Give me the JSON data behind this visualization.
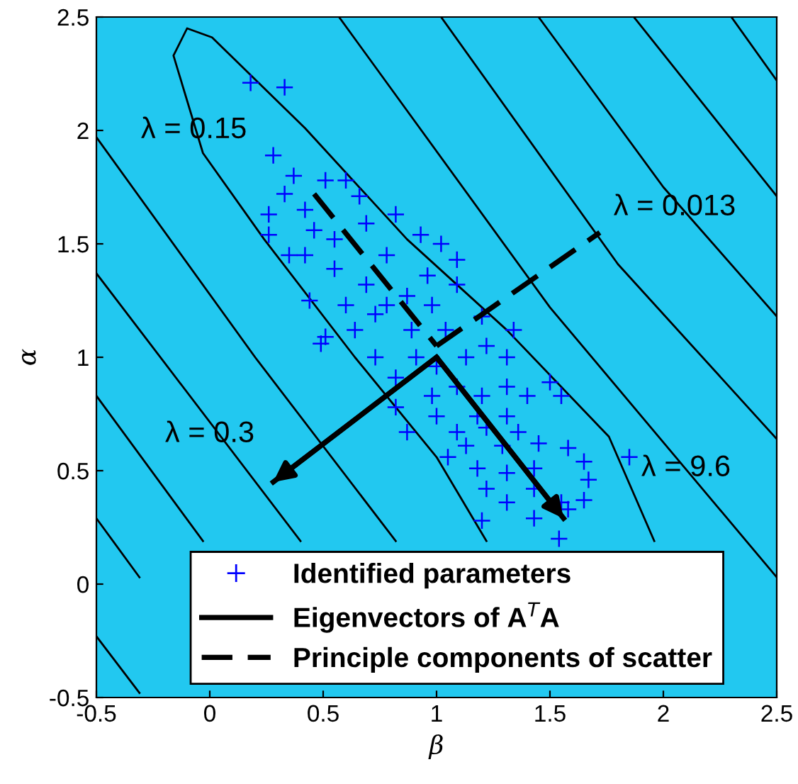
{
  "chart_data": {
    "type": "scatter",
    "xlabel": "β",
    "ylabel": "α",
    "xlim": [
      -0.5,
      2.5
    ],
    "ylim": [
      -0.5,
      2.5
    ],
    "xticks": [
      -0.5,
      0,
      0.5,
      1,
      1.5,
      2,
      2.5
    ],
    "yticks": [
      -0.5,
      0,
      0.5,
      1,
      1.5,
      2,
      2.5
    ],
    "grid": false,
    "legend": "bottom",
    "marker": "cross",
    "series": [
      {
        "type": "line",
        "marker": "none",
        "color": "#000000",
        "x": [
          0.57,
          1.5,
          2.5
        ],
        "values": [
          2.5,
          1.22,
          0.03
        ]
      },
      {
        "type": "line",
        "marker": "none",
        "color": "#000000",
        "x": [
          1.02,
          1.8,
          2.5
        ],
        "values": [
          2.5,
          1.41,
          0.64
        ]
      },
      {
        "type": "line",
        "marker": "none",
        "color": "#000000",
        "x": [
          1.45,
          2.0,
          2.5
        ],
        "values": [
          2.5,
          1.75,
          1.18
        ]
      },
      {
        "type": "line",
        "marker": "none",
        "color": "#000000",
        "x": [
          1.87,
          2.5
        ],
        "values": [
          2.5,
          1.71
        ]
      },
      {
        "type": "line",
        "marker": "none",
        "color": "#000000",
        "x": [
          2.3,
          2.5
        ],
        "values": [
          2.5,
          2.22
        ]
      },
      {
        "type": "line",
        "marker": "none",
        "color": "#000000",
        "x": [
          -0.5,
          0.2,
          0.82
        ],
        "values": [
          1.97,
          1.0,
          0.19
        ]
      },
      {
        "type": "line",
        "marker": "none",
        "color": "#000000",
        "x": [
          -0.5,
          0.4
        ],
        "values": [
          1.37,
          0.19
        ]
      },
      {
        "type": "line",
        "marker": "none",
        "color": "#000000",
        "x": [
          -0.5,
          -0.03
        ],
        "values": [
          0.83,
          0.19
        ]
      },
      {
        "type": "line",
        "marker": "none",
        "color": "#000000",
        "x": [
          -0.5,
          -0.31
        ],
        "values": [
          0.29,
          0.03
        ]
      },
      {
        "type": "line",
        "marker": "none",
        "color": "#000000",
        "x": [
          -0.5,
          -0.31
        ],
        "values": [
          -0.23,
          -0.48
        ]
      },
      {
        "type": "line",
        "marker": "none",
        "color": "#000000",
        "x": [
          1.22,
          1.0,
          0.64,
          0.24,
          -0.03,
          -0.16,
          -0.1,
          0.01,
          0.42,
          0.87,
          1.31,
          1.76,
          1.96
        ],
        "values": [
          0.19,
          0.56,
          1.0,
          1.52,
          1.9,
          2.33,
          2.45,
          2.41,
          2.01,
          1.52,
          1.12,
          0.65,
          0.19
        ]
      },
      {
        "name": "Identified parameters",
        "color": "#0000ff",
        "x": [
          0.18,
          0.33,
          0.28,
          0.37,
          0.33,
          0.51,
          0.6,
          0.66,
          0.26,
          0.42,
          0.26,
          0.35,
          0.44,
          0.49,
          0.51,
          0.55,
          0.69,
          0.82,
          0.93,
          1.02,
          1.09,
          0.55,
          0.69,
          0.78,
          0.87,
          0.98,
          1.09,
          1.2,
          0.64,
          0.73,
          0.82,
          0.91,
          1.04,
          1.13,
          1.22,
          1.31,
          1.34,
          1.09,
          1.2,
          1.31,
          1.4,
          1.5,
          1.55,
          0.87,
          1.0,
          1.09,
          1.22,
          1.36,
          1.45,
          1.58,
          1.65,
          1.05,
          1.18,
          1.31,
          1.43,
          1.67,
          1.22,
          1.31,
          1.43,
          1.55,
          1.65,
          1.2,
          1.43,
          1.58,
          1.85,
          1.54,
          0.42,
          0.46,
          0.6,
          0.78,
          0.96,
          0.73,
          0.89,
          1.0,
          0.82,
          0.98,
          1.18,
          1.31,
          1.29,
          1.13
        ],
        "values": [
          2.21,
          2.19,
          1.89,
          1.8,
          1.72,
          1.78,
          1.78,
          1.71,
          1.63,
          1.65,
          1.54,
          1.45,
          1.25,
          1.06,
          1.09,
          1.52,
          1.59,
          1.63,
          1.54,
          1.5,
          1.43,
          1.39,
          1.32,
          1.23,
          1.27,
          1.23,
          1.32,
          1.18,
          1.12,
          1.0,
          0.91,
          1.0,
          1.12,
          1.0,
          1.05,
          1.0,
          1.12,
          0.87,
          0.83,
          0.87,
          0.83,
          0.89,
          0.83,
          0.67,
          0.74,
          0.67,
          0.69,
          0.67,
          0.62,
          0.6,
          0.54,
          0.56,
          0.51,
          0.49,
          0.51,
          0.46,
          0.42,
          0.36,
          0.42,
          0.36,
          0.37,
          0.28,
          0.29,
          0.33,
          0.56,
          0.2,
          1.45,
          1.56,
          1.23,
          1.45,
          1.36,
          1.19,
          1.12,
          0.96,
          0.78,
          0.83,
          0.74,
          0.74,
          0.61,
          0.61
        ]
      },
      {
        "type": "line",
        "marker": "none",
        "name": "Eigenvectors of A$^{T}$A",
        "color": "#000000",
        "line_style": "solid",
        "x": [
          1.0,
          1.56
        ],
        "values": [
          1.0,
          0.29
        ]
      },
      {
        "type": "line",
        "marker": "none",
        "color": "#000000",
        "line_style": "solid",
        "x": [
          1.0,
          0.28
        ],
        "values": [
          1.0,
          0.45
        ]
      },
      {
        "type": "line",
        "marker": "none",
        "name": "Principle components of scatter",
        "color": "#000000",
        "line_style": "dashed",
        "x": [
          0.46,
          1.0
        ],
        "values": [
          1.72,
          1.05
        ]
      },
      {
        "type": "line",
        "marker": "none",
        "color": "#000000",
        "line_style": "dashed",
        "x": [
          1.0,
          1.72
        ],
        "values": [
          1.05,
          1.55
        ]
      }
    ],
    "annotations": [
      {
        "text": "λ = 0.15",
        "x": -0.07,
        "y": 2.0
      },
      {
        "text": "λ = 0.013",
        "x": 2.05,
        "y": 1.66
      },
      {
        "text": "λ = 0.3",
        "x": 0.0,
        "y": 0.66
      },
      {
        "text": "λ = 9.6",
        "x": 2.1,
        "y": 0.51
      }
    ]
  }
}
